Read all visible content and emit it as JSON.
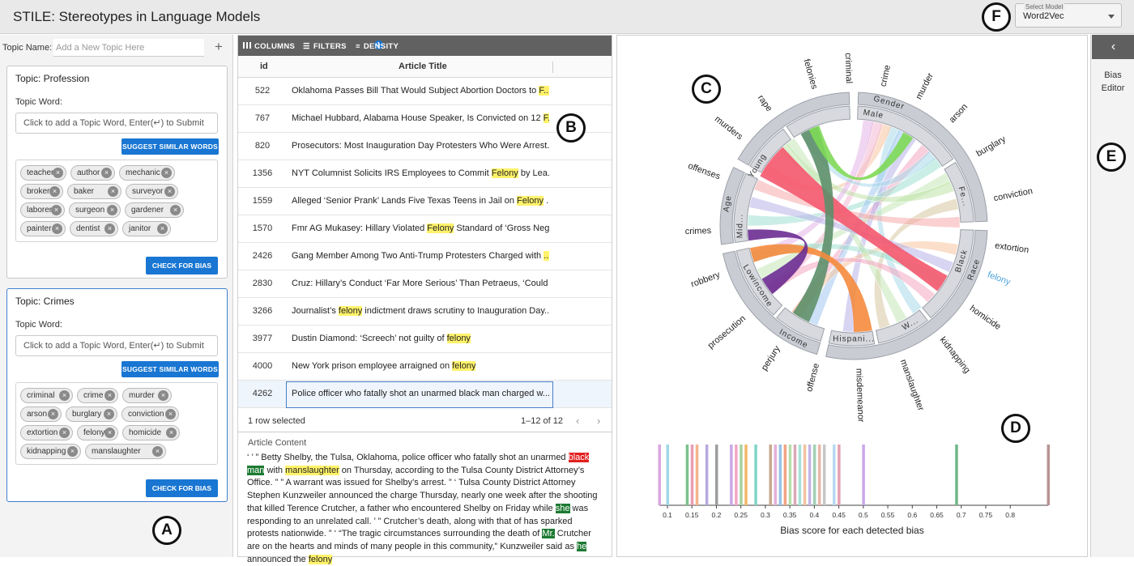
{
  "header": {
    "title": "STILE: Stereotypes in Language Models",
    "model_label": "Select Model",
    "model_value": "Word2Vec"
  },
  "markers": [
    "A",
    "B",
    "C",
    "D",
    "E",
    "F"
  ],
  "topic_panel": {
    "topic_name_label": "Topic Name:",
    "topic_name_placeholder": "Add a New Topic Here",
    "add_icon": "plus-icon",
    "cards": [
      {
        "title": "Topic: Profession",
        "word_label": "Topic Word:",
        "input_placeholder": "Click to add a Topic Word, Enter(↵) to Submit",
        "suggest": "SUGGEST SIMILAR WORDS",
        "check": "CHECK FOR BIAS",
        "words": [
          "teacher",
          "author",
          "mechanic",
          "broker",
          "baker",
          "surveyor",
          "laborer",
          "surgeon",
          "gardener",
          "painter",
          "dentist",
          "janitor"
        ]
      },
      {
        "title": "Topic: Crimes",
        "word_label": "Topic Word:",
        "input_placeholder": "Click to add a Topic Word, Enter(↵) to Submit",
        "suggest": "SUGGEST SIMILAR WORDS",
        "check": "CHECK FOR BIAS",
        "words": [
          "criminal",
          "crime",
          "murder",
          "arson",
          "burglary",
          "conviction",
          "extortion",
          "felony",
          "homicide",
          "kidnapping",
          "manslaughter"
        ]
      }
    ]
  },
  "table": {
    "toolbar": {
      "columns": "COLUMNS",
      "filters": "FILTERS",
      "filter_count": "1",
      "density": "DENSITY"
    },
    "headers": {
      "id": "id",
      "title": "Article Title"
    },
    "rows": [
      {
        "id": "522",
        "pre": "Oklahoma Passes Bill That Would Subject Abortion Doctors to ",
        "hl": "F...",
        "post": ""
      },
      {
        "id": "767",
        "pre": "Michael Hubbard, Alabama House Speaker, Is Convicted on 12 ",
        "hl": "F...",
        "post": ""
      },
      {
        "id": "820",
        "pre": "Prosecutors: Most Inauguration Day Protesters Who Were Arrest...",
        "hl": "",
        "post": ""
      },
      {
        "id": "1356",
        "pre": "NYT Columnist Solicits IRS Employees to Commit ",
        "hl": "Felony",
        "post": " by Lea..."
      },
      {
        "id": "1559",
        "pre": "Alleged ‘Senior Prank’ Lands Five Texas Teens in Jail on ",
        "hl": "Felony",
        "post": " ..."
      },
      {
        "id": "1570",
        "pre": "Fmr AG Mukasey: Hillary Violated ",
        "hl": "Felony",
        "post": " Standard of ‘Gross Neg..."
      },
      {
        "id": "2426",
        "pre": "Gang Member Among Two Anti-Trump Protesters Charged with ",
        "hl": "...",
        "post": ""
      },
      {
        "id": "2830",
        "pre": "Cruz: Hillary’s Conduct ‘Far More Serious’ Than Petraeus, ‘Could ...",
        "hl": "",
        "post": ""
      },
      {
        "id": "3266",
        "pre": "Journalist’s ",
        "hl": "felony",
        "post": " indictment draws scrutiny to Inauguration Day..."
      },
      {
        "id": "3977",
        "pre": "Dustin Diamond: ‘Screech’ not guilty of ",
        "hl": "felony",
        "post": ""
      },
      {
        "id": "4000",
        "pre": "New York prison employee arraigned on ",
        "hl": "felony",
        "post": ""
      },
      {
        "id": "4262",
        "pre": "Police officer who fatally shot an unarmed black man charged w...",
        "hl": "",
        "post": ""
      }
    ],
    "footer": {
      "selected": "1 row selected",
      "pagination": "1–12 of 12"
    },
    "article_label": "Article Content"
  },
  "chord": {
    "inner": [
      "Gender",
      "Male",
      "Fe...",
      "Race",
      "Black",
      "W...",
      "Hispani...",
      "Income",
      "Lowincome",
      "Mid...",
      "Age",
      "Young"
    ],
    "outer": [
      "felonies",
      "criminal",
      "crime",
      "murder",
      "arson",
      "burglary",
      "conviction",
      "extortion",
      "felony",
      "homicide",
      "kidnapping",
      "manslaughter",
      "misdemeanor",
      "offense",
      "perjury",
      "prosecution",
      "robbery",
      "crimes",
      "offenses",
      "murders",
      "rape"
    ],
    "highlight_word": "felony"
  },
  "chart_data": {
    "type": "strip",
    "xlabel": "Bias score for each detected bias",
    "ticks": [
      "0.1",
      "0.15",
      "0.2",
      "0.25",
      "0.3",
      "0.35",
      "0.4",
      "0.45",
      "0.5",
      "0.55",
      "0.6",
      "0.65",
      "0.7",
      "0.75",
      "0.8"
    ],
    "xlim": [
      0.1,
      0.8
    ],
    "values": [
      0.08,
      0.1,
      0.14,
      0.15,
      0.16,
      0.18,
      0.2,
      0.23,
      0.24,
      0.25,
      0.26,
      0.28,
      0.31,
      0.32,
      0.33,
      0.34,
      0.35,
      0.36,
      0.37,
      0.38,
      0.39,
      0.4,
      0.41,
      0.42,
      0.44,
      0.45,
      0.5,
      0.69,
      0.88
    ],
    "colors": [
      "#d9a6df",
      "#9fd8e8",
      "#7cc08f",
      "#e89fb2",
      "#f5b48a",
      "#b7a8dd",
      "#9e9e9e",
      "#c9a8e8",
      "#f3a6c7",
      "#a5d3a1",
      "#f4b86b",
      "#7fd4c7",
      "#c8a88e",
      "#e4b0d8",
      "#98c4e8",
      "#f2a383",
      "#b6e0a8",
      "#d8a9b9",
      "#a6e3d8",
      "#f1c2a0",
      "#c2b5e8",
      "#9fd0b6",
      "#e9b6a8",
      "#c7c7c7",
      "#b7d8f1",
      "#e6a1b1",
      "#c9a8ea",
      "#6fb787",
      "#b99393"
    ]
  },
  "editor": {
    "label": "Bias Editor",
    "collapse_icon": "chevron-left-icon"
  }
}
